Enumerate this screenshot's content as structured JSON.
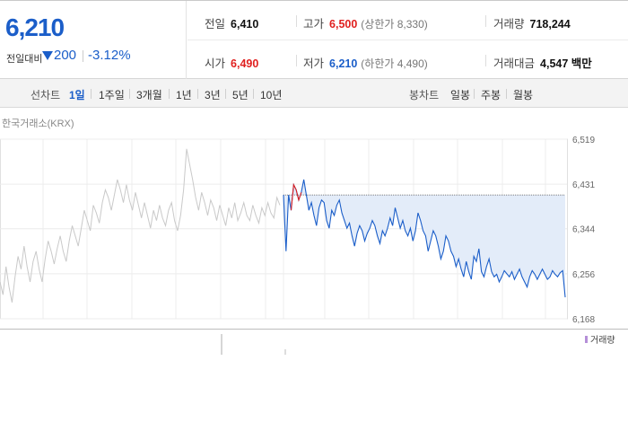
{
  "quote": {
    "price": "6,210",
    "change_label": "전일대비",
    "change_value": "200",
    "change_pct": "-3.12%",
    "prev_close_label": "전일",
    "prev_close": "6,410",
    "high_label": "고가",
    "high": "6,500",
    "upper_limit": "(상한가 8,330)",
    "volume_label": "거래량",
    "volume": "718,244",
    "open_label": "시가",
    "open": "6,490",
    "low_label": "저가",
    "low": "6,210",
    "lower_limit": "(하한가 4,490)",
    "amount_label": "거래대금",
    "amount": "4,547 백만"
  },
  "tabs": {
    "line_label": "선차트",
    "line_periods": [
      "1일",
      "1주일",
      "3개월",
      "1년",
      "3년",
      "5년",
      "10년"
    ],
    "active": "1일",
    "candle_label": "봉차트",
    "candle_periods": [
      "일봉",
      "주봉",
      "월봉"
    ]
  },
  "source_label": "한국거래소(KRX)",
  "colors": {
    "down": "#1b5ec9",
    "up": "#e0201f",
    "fill": "#e3ecf9",
    "prev_day": "#c9c9c9"
  },
  "chart_data": {
    "type": "line",
    "title": "",
    "ylim": [
      6168,
      6519
    ],
    "yticks": [
      "6,519",
      "6,431",
      "6,344",
      "6,256",
      "6,168"
    ],
    "reference_value": 6410,
    "legend": [
      "거래량"
    ],
    "grid": true,
    "series": [
      {
        "values": [
          6240,
          6215,
          6270,
          6230,
          6200,
          6250,
          6290,
          6265,
          6310,
          6270,
          6240,
          6280,
          6300,
          6265,
          6240,
          6285,
          6320,
          6300,
          6275,
          6305,
          6330,
          6300,
          6280,
          6320,
          6350,
          6330,
          6310,
          6345,
          6380,
          6360,
          6340,
          6390,
          6375,
          6355,
          6395,
          6420,
          6405,
          6380,
          6410,
          6440,
          6420,
          6395,
          6430,
          6400,
          6380,
          6415,
          6390,
          6365,
          6395,
          6370,
          6345,
          6380,
          6360,
          6390,
          6365,
          6350,
          6380,
          6395,
          6360,
          6340,
          6370,
          6420,
          6500,
          6470,
          6440,
          6405,
          6380,
          6415,
          6395,
          6370,
          6400,
          6385,
          6360,
          6390,
          6370,
          6350,
          6385,
          6365,
          6395,
          6360,
          6375,
          6395,
          6370,
          6360,
          6390,
          6370,
          6355,
          6385,
          6370,
          6395,
          6375,
          6365,
          6405,
          6390
        ]
      },
      {
        "values": [
          6410,
          6300,
          6410,
          6380,
          6430,
          6420,
          6400,
          6415,
          6440,
          6410,
          6380,
          6395,
          6370,
          6350,
          6385,
          6400,
          6395,
          6360,
          6345,
          6380,
          6370,
          6390,
          6400,
          6375,
          6360,
          6345,
          6355,
          6330,
          6310,
          6335,
          6350,
          6340,
          6320,
          6335,
          6345,
          6360,
          6350,
          6330,
          6315,
          6340,
          6330,
          6345,
          6365,
          6350,
          6385,
          6365,
          6345,
          6360,
          6340,
          6330,
          6345,
          6320,
          6340,
          6375,
          6360,
          6340,
          6330,
          6300,
          6320,
          6340,
          6330,
          6310,
          6285,
          6300,
          6330,
          6320,
          6300,
          6290,
          6270,
          6285,
          6265,
          6250,
          6280,
          6260,
          6245,
          6290,
          6280,
          6305,
          6260,
          6250,
          6270,
          6285,
          6260,
          6250,
          6255,
          6240,
          6250,
          6262,
          6256,
          6250,
          6260,
          6245,
          6255,
          6265,
          6250,
          6240,
          6230,
          6250,
          6262,
          6255,
          6245,
          6255,
          6265,
          6255,
          6245,
          6250,
          6262,
          6255,
          6250,
          6258,
          6262,
          6210
        ]
      }
    ]
  }
}
